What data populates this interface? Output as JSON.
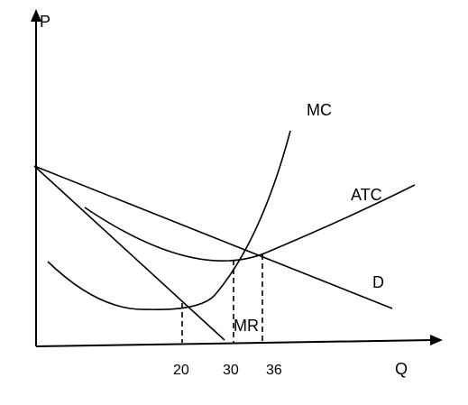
{
  "axes": {
    "y_label": "P",
    "x_label": "Q",
    "x_ticks": [
      "20",
      "30",
      "36"
    ]
  },
  "curves": {
    "mc": "MC",
    "atc": "ATC",
    "demand": "D",
    "mr": "MR"
  },
  "colors": {
    "line": "#000000",
    "background": "#ffffff"
  }
}
